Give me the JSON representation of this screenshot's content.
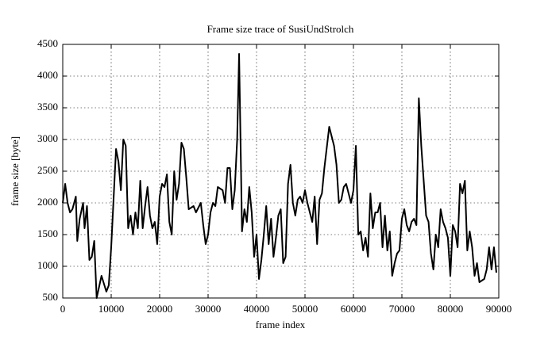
{
  "chart_data": {
    "type": "line",
    "title": "Frame size trace of SusiUndStrolch",
    "x_label": "frame index",
    "y_label": "frame size [byte]",
    "grid": true,
    "xlim": [
      0,
      90000
    ],
    "xticks": [
      0,
      10000,
      20000,
      30000,
      40000,
      50000,
      60000,
      70000,
      80000,
      90000
    ],
    "ylim": [
      500,
      4500
    ],
    "yticks": [
      500,
      1000,
      1500,
      2000,
      2500,
      3000,
      3500,
      4000,
      4500
    ],
    "color": "#000000",
    "x": [
      0,
      500,
      1000,
      1500,
      2000,
      2700,
      3000,
      3500,
      4200,
      4500,
      5000,
      5500,
      6000,
      6500,
      7000,
      8000,
      9000,
      9500,
      10000,
      11000,
      11500,
      12000,
      12500,
      13000,
      13500,
      14000,
      14500,
      15000,
      15500,
      16000,
      16500,
      17000,
      17500,
      18000,
      18500,
      19000,
      19500,
      20000,
      20500,
      21000,
      21500,
      22000,
      22500,
      23000,
      23500,
      24000,
      24500,
      25000,
      25500,
      26000,
      27000,
      27500,
      28500,
      29000,
      29500,
      30000,
      30500,
      31000,
      31500,
      32000,
      33000,
      33500,
      34000,
      34500,
      35000,
      35500,
      36000,
      36400,
      36800,
      37000,
      37500,
      38000,
      38500,
      39000,
      39500,
      40000,
      40500,
      41000,
      41500,
      42000,
      42500,
      43000,
      43500,
      44000,
      44500,
      45000,
      45500,
      46000,
      46500,
      47000,
      47500,
      48000,
      48500,
      49000,
      49500,
      50000,
      50500,
      51000,
      51500,
      52000,
      52500,
      53000,
      53500,
      54000,
      55000,
      56000,
      56500,
      57000,
      57500,
      58000,
      58500,
      59000,
      59500,
      60000,
      60500,
      61000,
      61500,
      62000,
      62500,
      63000,
      63500,
      64000,
      64500,
      65000,
      65500,
      66000,
      66500,
      67000,
      67500,
      68000,
      68500,
      69000,
      69500,
      70000,
      70500,
      71000,
      71500,
      72000,
      72500,
      73000,
      73500,
      74000,
      75000,
      75500,
      76000,
      76500,
      77000,
      77500,
      78000,
      78500,
      79000,
      79500,
      80000,
      80500,
      81000,
      81500,
      82000,
      82500,
      83000,
      83500,
      84000,
      84500,
      85000,
      85500,
      86000,
      87000,
      87500,
      88000,
      88500,
      89000,
      89500
    ],
    "values": [
      2000,
      2300,
      2000,
      1850,
      1900,
      2100,
      1400,
      1750,
      2000,
      1600,
      1950,
      1100,
      1150,
      1400,
      500,
      850,
      600,
      700,
      1300,
      2850,
      2650,
      2200,
      3000,
      2900,
      1600,
      1800,
      1500,
      1850,
      1600,
      2350,
      1600,
      1950,
      2250,
      1800,
      1600,
      1700,
      1350,
      2100,
      2300,
      2250,
      2450,
      1700,
      1500,
      2500,
      2050,
      2300,
      2950,
      2850,
      2400,
      1900,
      1950,
      1850,
      2000,
      1650,
      1350,
      1500,
      1850,
      2000,
      1950,
      2250,
      2200,
      2000,
      2550,
      2550,
      1900,
      2200,
      3000,
      4350,
      2500,
      1550,
      1900,
      1700,
      2250,
      1850,
      1150,
      1500,
      800,
      1100,
      1500,
      1950,
      1350,
      1750,
      1150,
      1450,
      1800,
      1900,
      1050,
      1150,
      2300,
      2600,
      2000,
      1800,
      2050,
      2100,
      2000,
      2200,
      2000,
      1850,
      1700,
      2100,
      1350,
      2050,
      2150,
      2550,
      3200,
      2900,
      2600,
      2000,
      2050,
      2250,
      2300,
      2150,
      2000,
      2200,
      2900,
      1500,
      1550,
      1250,
      1450,
      1150,
      2150,
      1600,
      1850,
      1850,
      2000,
      1300,
      1800,
      1250,
      1550,
      850,
      1050,
      1200,
      1250,
      1750,
      1900,
      1650,
      1550,
      1700,
      1750,
      1650,
      3650,
      2900,
      1800,
      1700,
      1200,
      950,
      1500,
      1300,
      1900,
      1700,
      1600,
      1450,
      850,
      1650,
      1550,
      1300,
      2300,
      2150,
      2350,
      1250,
      1550,
      1300,
      850,
      1050,
      750,
      800,
      950,
      1300,
      950,
      1300,
      900
    ]
  }
}
